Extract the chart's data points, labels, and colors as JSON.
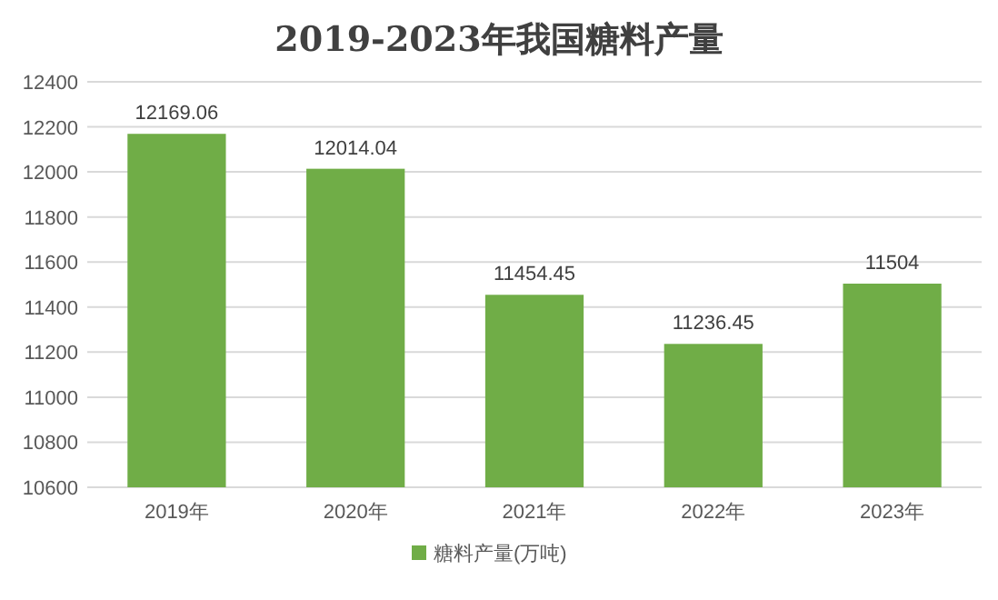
{
  "chart_data": {
    "type": "bar",
    "title": "2019-2023年我国糖料产量",
    "categories": [
      "2019年",
      "2020年",
      "2021年",
      "2022年",
      "2023年"
    ],
    "series": [
      {
        "name": "糖料产量(万吨)",
        "color": "#70ad47",
        "values": [
          12169.06,
          12014.04,
          11454.45,
          11236.45,
          11504
        ]
      }
    ],
    "ylim": [
      10600,
      12400
    ],
    "yticks": [
      10600,
      10800,
      11000,
      11200,
      11400,
      11600,
      11800,
      12000,
      12200,
      12400
    ],
    "grid": "y",
    "legend": "bottom",
    "data_labels": true
  }
}
